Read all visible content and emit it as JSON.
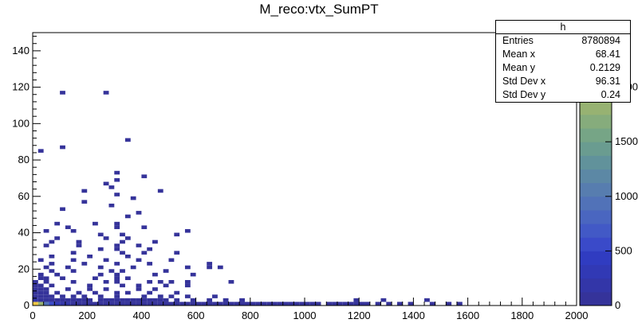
{
  "title": "M_reco:vtx_SumPT",
  "stats": {
    "name": "h",
    "rows": [
      {
        "label": "Entries",
        "value": "8780894"
      },
      {
        "label": "Mean x",
        "value": "68.41"
      },
      {
        "label": "Mean y",
        "value": "0.2129"
      },
      {
        "label": "Std Dev x",
        "value": "96.31"
      },
      {
        "label": "Std Dev y",
        "value": "0.24"
      }
    ]
  },
  "colors": {
    "palette": [
      "#35339a",
      "#3336a8",
      "#3139b5",
      "#303cc1",
      "#3a4ac9",
      "#4259c6",
      "#4a66c0",
      "#5172b8",
      "#577daf",
      "#5c88a5",
      "#61929b",
      "#6a9c90",
      "#76a586",
      "#86ac7c",
      "#97b272",
      "#a9b769",
      "#bcbc60",
      "#cec056",
      "#e0c44c",
      "#f1c743"
    ],
    "axis": "#000000"
  },
  "chart_data": {
    "type": "heatmap",
    "title": "M_reco:vtx_SumPT",
    "xlabel": "",
    "ylabel": "",
    "xlim": [
      0,
      2000
    ],
    "ylim": [
      0,
      150
    ],
    "zlim": [
      0,
      2500
    ],
    "x_ticks": [
      "0",
      "200",
      "400",
      "600",
      "800",
      "1000",
      "1200",
      "1400",
      "1600",
      "1800",
      "2000"
    ],
    "y_ticks": [
      "0",
      "20",
      "40",
      "60",
      "80",
      "100",
      "120",
      "140"
    ],
    "z_ticks": [
      "0",
      "500",
      "1000",
      "1500",
      "2000"
    ],
    "bin_width": [
      20,
      2
    ],
    "bins": [
      [
        0,
        0,
        2500
      ],
      [
        20,
        0,
        1800
      ],
      [
        40,
        0,
        900
      ],
      [
        60,
        0,
        500
      ],
      [
        80,
        0,
        300
      ],
      [
        100,
        0,
        200
      ],
      [
        120,
        0,
        150
      ],
      [
        140,
        0,
        120
      ],
      [
        160,
        0,
        100
      ],
      [
        180,
        0,
        80
      ],
      [
        200,
        0,
        60
      ],
      [
        220,
        0,
        50
      ],
      [
        240,
        0,
        40
      ],
      [
        260,
        0,
        35
      ],
      [
        280,
        0,
        30
      ],
      [
        300,
        0,
        25
      ],
      [
        320,
        0,
        20
      ],
      [
        340,
        0,
        18
      ],
      [
        360,
        0,
        15
      ],
      [
        380,
        0,
        12
      ],
      [
        400,
        0,
        10
      ],
      [
        420,
        0,
        9
      ],
      [
        440,
        0,
        8
      ],
      [
        460,
        0,
        7
      ],
      [
        480,
        0,
        6
      ],
      [
        500,
        0,
        5
      ],
      [
        520,
        0,
        4
      ],
      [
        540,
        0,
        3
      ],
      [
        560,
        0,
        3
      ],
      [
        580,
        0,
        2
      ],
      [
        600,
        0,
        2
      ],
      [
        620,
        0,
        2
      ],
      [
        640,
        0,
        1
      ],
      [
        660,
        0,
        1
      ],
      [
        680,
        0,
        1
      ],
      [
        700,
        0,
        1
      ],
      [
        720,
        0,
        1
      ],
      [
        740,
        0,
        1
      ],
      [
        760,
        0,
        1
      ],
      [
        780,
        0,
        1
      ],
      [
        800,
        0,
        1
      ],
      [
        820,
        0,
        1
      ],
      [
        840,
        0,
        1
      ],
      [
        860,
        0,
        1
      ],
      [
        880,
        0,
        1
      ],
      [
        900,
        0,
        1
      ],
      [
        920,
        0,
        1
      ],
      [
        940,
        0,
        1
      ],
      [
        960,
        0,
        1
      ],
      [
        980,
        0,
        1
      ],
      [
        1000,
        0,
        1
      ],
      [
        1020,
        0,
        1
      ],
      [
        1040,
        0,
        1
      ],
      [
        1080,
        0,
        1
      ],
      [
        1100,
        0,
        1
      ],
      [
        1120,
        0,
        1
      ],
      [
        1140,
        0,
        1
      ],
      [
        1160,
        0,
        1
      ],
      [
        1180,
        0,
        1
      ],
      [
        1200,
        0,
        1
      ],
      [
        1220,
        0,
        1
      ],
      [
        1260,
        0,
        1
      ],
      [
        1300,
        0,
        1
      ],
      [
        1340,
        0,
        1
      ],
      [
        1380,
        0,
        1
      ],
      [
        1460,
        0,
        1
      ],
      [
        1520,
        0,
        1
      ],
      [
        1560,
        0,
        1
      ],
      [
        0,
        2,
        200
      ],
      [
        20,
        2,
        60
      ],
      [
        40,
        2,
        20
      ],
      [
        60,
        2,
        10
      ],
      [
        80,
        2,
        5
      ],
      [
        100,
        2,
        3
      ],
      [
        120,
        2,
        2
      ],
      [
        140,
        2,
        2
      ],
      [
        160,
        2,
        1
      ],
      [
        180,
        2,
        1
      ],
      [
        200,
        2,
        1
      ],
      [
        240,
        2,
        1
      ],
      [
        260,
        2,
        1
      ],
      [
        280,
        2,
        1
      ],
      [
        300,
        2,
        1
      ],
      [
        320,
        2,
        1
      ],
      [
        340,
        2,
        1
      ],
      [
        360,
        2,
        1
      ],
      [
        380,
        2,
        1
      ],
      [
        400,
        2,
        1
      ],
      [
        420,
        2,
        1
      ],
      [
        440,
        2,
        1
      ],
      [
        460,
        2,
        1
      ],
      [
        480,
        2,
        1
      ],
      [
        520,
        2,
        1
      ],
      [
        580,
        2,
        1
      ],
      [
        640,
        2,
        1
      ],
      [
        700,
        2,
        1
      ],
      [
        760,
        2,
        1
      ],
      [
        1180,
        2,
        1
      ],
      [
        1280,
        2,
        1
      ],
      [
        1440,
        2,
        1
      ],
      [
        0,
        4,
        20
      ],
      [
        20,
        4,
        5
      ],
      [
        40,
        4,
        2
      ],
      [
        60,
        4,
        1
      ],
      [
        100,
        4,
        1
      ],
      [
        140,
        4,
        1
      ],
      [
        180,
        4,
        1
      ],
      [
        240,
        4,
        1
      ],
      [
        300,
        4,
        1
      ],
      [
        400,
        4,
        1
      ],
      [
        460,
        4,
        1
      ],
      [
        500,
        4,
        1
      ],
      [
        560,
        4,
        1
      ],
      [
        660,
        4,
        1
      ],
      [
        0,
        6,
        8
      ],
      [
        20,
        6,
        3
      ],
      [
        40,
        6,
        1
      ],
      [
        80,
        6,
        1
      ],
      [
        160,
        6,
        1
      ],
      [
        220,
        6,
        1
      ],
      [
        300,
        6,
        1
      ],
      [
        340,
        6,
        1
      ],
      [
        420,
        6,
        1
      ],
      [
        520,
        6,
        1
      ],
      [
        0,
        8,
        4
      ],
      [
        20,
        8,
        2
      ],
      [
        40,
        8,
        1
      ],
      [
        120,
        8,
        1
      ],
      [
        200,
        8,
        1
      ],
      [
        260,
        8,
        1
      ],
      [
        380,
        8,
        1
      ],
      [
        440,
        8,
        1
      ],
      [
        0,
        10,
        2
      ],
      [
        20,
        10,
        1
      ],
      [
        60,
        10,
        1
      ],
      [
        200,
        10,
        1
      ],
      [
        320,
        10,
        1
      ],
      [
        380,
        10,
        1
      ],
      [
        480,
        10,
        1
      ],
      [
        560,
        10,
        1
      ],
      [
        0,
        12,
        1
      ],
      [
        40,
        12,
        1
      ],
      [
        140,
        12,
        1
      ],
      [
        260,
        12,
        1
      ],
      [
        300,
        12,
        1
      ],
      [
        420,
        12,
        1
      ],
      [
        460,
        12,
        1
      ],
      [
        500,
        12,
        1
      ],
      [
        560,
        12,
        1
      ],
      [
        720,
        12,
        1
      ],
      [
        20,
        14,
        1
      ],
      [
        40,
        14,
        1
      ],
      [
        100,
        14,
        1
      ],
      [
        220,
        14,
        1
      ],
      [
        300,
        14,
        1
      ],
      [
        340,
        14,
        1
      ],
      [
        20,
        16,
        1
      ],
      [
        80,
        16,
        1
      ],
      [
        240,
        16,
        1
      ],
      [
        300,
        16,
        1
      ],
      [
        440,
        16,
        1
      ],
      [
        580,
        16,
        1
      ],
      [
        60,
        18,
        1
      ],
      [
        140,
        18,
        1
      ],
      [
        280,
        18,
        1
      ],
      [
        320,
        18,
        1
      ],
      [
        480,
        18,
        1
      ],
      [
        40,
        20,
        1
      ],
      [
        120,
        20,
        1
      ],
      [
        240,
        20,
        1
      ],
      [
        360,
        20,
        1
      ],
      [
        560,
        20,
        1
      ],
      [
        640,
        20,
        1
      ],
      [
        680,
        20,
        1
      ],
      [
        60,
        22,
        1
      ],
      [
        180,
        22,
        1
      ],
      [
        300,
        22,
        1
      ],
      [
        420,
        22,
        1
      ],
      [
        640,
        22,
        1
      ],
      [
        20,
        24,
        1
      ],
      [
        140,
        24,
        1
      ],
      [
        260,
        24,
        1
      ],
      [
        380,
        24,
        1
      ],
      [
        500,
        24,
        1
      ],
      [
        60,
        26,
        1
      ],
      [
        200,
        26,
        1
      ],
      [
        340,
        26,
        1
      ],
      [
        140,
        28,
        1
      ],
      [
        320,
        28,
        1
      ],
      [
        400,
        28,
        1
      ],
      [
        520,
        28,
        1
      ],
      [
        240,
        30,
        1
      ],
      [
        300,
        30,
        1
      ],
      [
        420,
        30,
        1
      ],
      [
        40,
        32,
        1
      ],
      [
        160,
        32,
        1
      ],
      [
        300,
        32,
        1
      ],
      [
        380,
        32,
        1
      ],
      [
        60,
        34,
        1
      ],
      [
        160,
        34,
        1
      ],
      [
        320,
        34,
        1
      ],
      [
        440,
        34,
        1
      ],
      [
        80,
        36,
        1
      ],
      [
        260,
        36,
        1
      ],
      [
        340,
        36,
        1
      ],
      [
        240,
        38,
        1
      ],
      [
        320,
        38,
        1
      ],
      [
        520,
        38,
        1
      ],
      [
        40,
        40,
        1
      ],
      [
        140,
        40,
        1
      ],
      [
        560,
        40,
        1
      ],
      [
        120,
        42,
        1
      ],
      [
        300,
        42,
        1
      ],
      [
        400,
        42,
        1
      ],
      [
        80,
        44,
        1
      ],
      [
        220,
        44,
        1
      ],
      [
        300,
        44,
        1
      ],
      [
        340,
        48,
        1
      ],
      [
        380,
        50,
        1
      ],
      [
        100,
        52,
        1
      ],
      [
        280,
        54,
        1
      ],
      [
        180,
        56,
        1
      ],
      [
        360,
        58,
        1
      ],
      [
        300,
        60,
        1
      ],
      [
        180,
        62,
        1
      ],
      [
        460,
        62,
        1
      ],
      [
        280,
        64,
        1
      ],
      [
        260,
        66,
        1
      ],
      [
        300,
        68,
        1
      ],
      [
        400,
        70,
        1
      ],
      [
        300,
        72,
        1
      ],
      [
        20,
        84,
        1
      ],
      [
        100,
        86,
        1
      ],
      [
        340,
        90,
        1
      ],
      [
        100,
        116,
        1
      ],
      [
        260,
        116,
        1
      ]
    ]
  }
}
